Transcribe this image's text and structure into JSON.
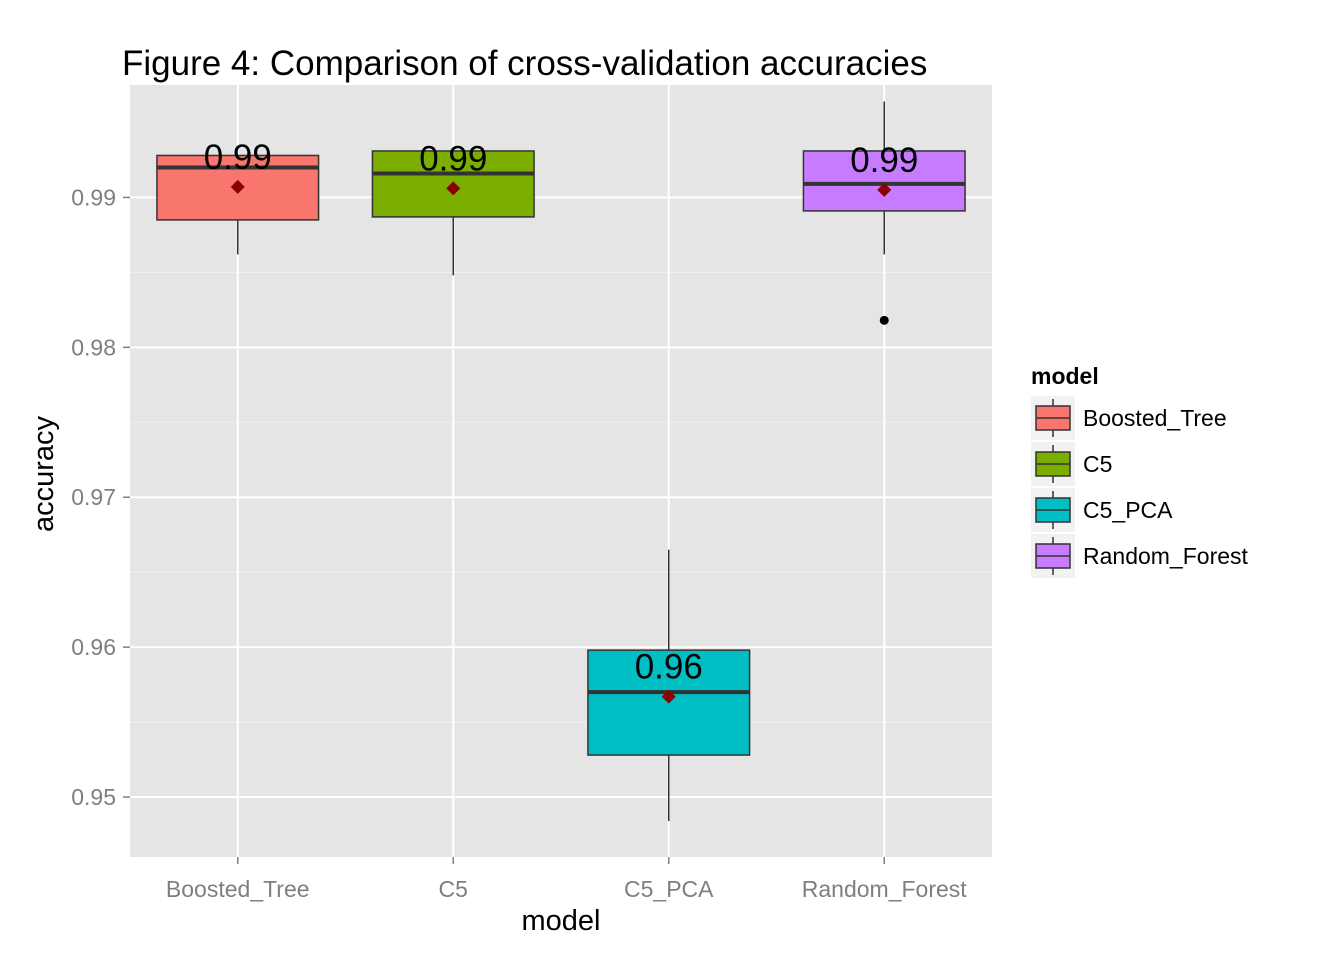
{
  "chart_data": {
    "type": "boxplot",
    "title": "Figure 4: Comparison of cross-validation accuracies",
    "xlabel": "model",
    "ylabel": "accuracy",
    "ylim": [
      0.946,
      0.9975
    ],
    "yticks": [
      0.95,
      0.96,
      0.97,
      0.98,
      0.99
    ],
    "ytick_labels": [
      "0.95",
      "0.96",
      "0.97",
      "0.98",
      "0.99"
    ],
    "grid": true,
    "legend": {
      "title": "model",
      "position": "right"
    },
    "categories": [
      "Boosted_Tree",
      "C5",
      "C5_PCA",
      "Random_Forest"
    ],
    "series": [
      {
        "name": "Boosted_Tree",
        "color": "#F8766D",
        "whisker_low": 0.9862,
        "q1": 0.9885,
        "median": 0.992,
        "q3": 0.9928,
        "whisker_high": 0.9928,
        "mean": 0.9907,
        "label": "0.99",
        "outliers": []
      },
      {
        "name": "C5",
        "color": "#7CAE00",
        "whisker_low": 0.9848,
        "q1": 0.9887,
        "median": 0.9916,
        "q3": 0.9931,
        "whisker_high": 0.9931,
        "mean": 0.9906,
        "label": "0.99",
        "outliers": []
      },
      {
        "name": "C5_PCA",
        "color": "#00BFC4",
        "whisker_low": 0.9484,
        "q1": 0.9528,
        "median": 0.957,
        "q3": 0.9598,
        "whisker_high": 0.9665,
        "mean": 0.9567,
        "label": "0.96",
        "outliers": []
      },
      {
        "name": "Random_Forest",
        "color": "#C77CFF",
        "whisker_low": 0.9862,
        "q1": 0.9891,
        "median": 0.9909,
        "q3": 0.9931,
        "whisker_high": 0.9964,
        "mean": 0.9905,
        "label": "0.99",
        "outliers": [
          0.9818
        ]
      }
    ]
  }
}
